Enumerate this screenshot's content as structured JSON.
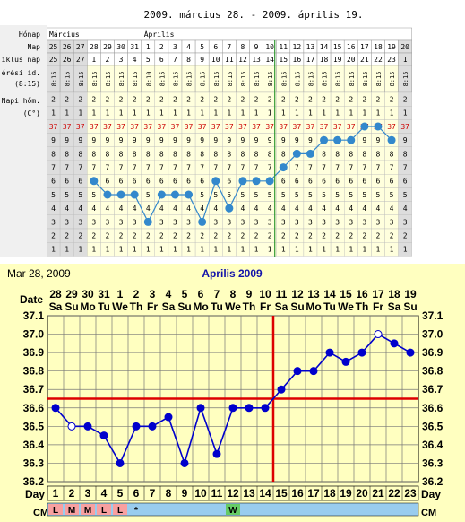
{
  "top_chart": {
    "title": "2009. március 28. - 2009. április 19.",
    "row_labels": {
      "month": "Hónap",
      "day": "Nap",
      "cycle_day": "iklus nap",
      "time": "érési id.\n(8:15)",
      "temp_label": "Napi hőm.\n(C°)"
    },
    "months": [
      "Március",
      "Április"
    ],
    "days": [
      "25",
      "26",
      "27",
      "28",
      "29",
      "30",
      "31",
      "1",
      "2",
      "3",
      "4",
      "5",
      "6",
      "7",
      "8",
      "9",
      "10",
      "11",
      "12",
      "13",
      "14",
      "15",
      "16",
      "17",
      "18",
      "19",
      "20"
    ],
    "cycle_days": [
      "25",
      "26",
      "27",
      "1",
      "2",
      "3",
      "4",
      "5",
      "6",
      "7",
      "8",
      "9",
      "10",
      "11",
      "12",
      "13",
      "14",
      "15",
      "16",
      "17",
      "18",
      "19",
      "20",
      "21",
      "22",
      "23",
      "1"
    ],
    "time_values": [
      "8:15",
      "8:15",
      "8:15",
      "8:15",
      "8:15",
      "8:15",
      "8:15",
      "8:10",
      "8:15",
      "8:15",
      "8:15",
      "8:15",
      "8:15",
      "8:15",
      "8:15",
      "8:15",
      "8:15",
      "8:15",
      "8:15",
      "8:15",
      "8:15",
      "8:15",
      "8:15",
      "8:15",
      "8:15",
      "8:15",
      "8:15"
    ],
    "grid_digits": [
      "2",
      "1",
      "37",
      "9",
      "8",
      "7",
      "6",
      "5",
      "4",
      "3",
      "2",
      "1"
    ],
    "cover_line_col": 14
  },
  "chart_data": {
    "type": "line",
    "header_left": "Mar 28, 2009",
    "title": "Aprilis 2009",
    "date_label": "Date",
    "day_label": "Day",
    "cm_label": "CM",
    "dates": [
      "28",
      "29",
      "30",
      "31",
      "1",
      "2",
      "3",
      "4",
      "5",
      "6",
      "7",
      "8",
      "9",
      "10",
      "11",
      "12",
      "13",
      "14",
      "15",
      "16",
      "17",
      "18",
      "19"
    ],
    "weekdays": [
      "Sa",
      "Su",
      "Mo",
      "Tu",
      "We",
      "Th",
      "Fr",
      "Sa",
      "Su",
      "Mo",
      "Tu",
      "We",
      "Th",
      "Fr",
      "Sa",
      "Su",
      "Mo",
      "Tu",
      "We",
      "Th",
      "Fr",
      "Sa",
      "Su"
    ],
    "x": [
      1,
      2,
      3,
      4,
      5,
      6,
      7,
      8,
      9,
      10,
      11,
      12,
      13,
      14,
      15,
      16,
      17,
      18,
      19,
      20,
      21,
      22,
      23
    ],
    "series": [
      {
        "values": [
          36.6,
          36.5,
          36.5,
          36.45,
          36.3,
          36.5,
          36.5,
          36.55,
          36.3,
          36.6,
          36.35,
          36.6,
          36.6,
          36.6,
          36.7,
          36.8,
          36.8,
          36.9,
          36.85,
          36.9,
          37.0,
          36.95,
          36.9
        ],
        "open_points": [
          2,
          21
        ]
      }
    ],
    "ylim": [
      36.2,
      37.1
    ],
    "yticks": [
      "36.2",
      "36.3",
      "36.4",
      "36.5",
      "36.6",
      "36.7",
      "36.8",
      "36.9",
      "37.0",
      "37.1"
    ],
    "cover_line": 36.65,
    "ovulation_day": 14,
    "cm": [
      "L",
      "M",
      "M",
      "L",
      "L",
      "*",
      "",
      "",
      "",
      "",
      "",
      "W",
      "",
      "",
      "",
      "",
      "",
      "",
      "",
      "",
      "",
      "",
      ""
    ],
    "colors": {
      "background": "#ffffc0",
      "line": "#0000cc",
      "redline": "#dd0000",
      "period": "#f8a0a0",
      "cm_w": "#66cc66",
      "cm_row": "#99ccee"
    }
  }
}
